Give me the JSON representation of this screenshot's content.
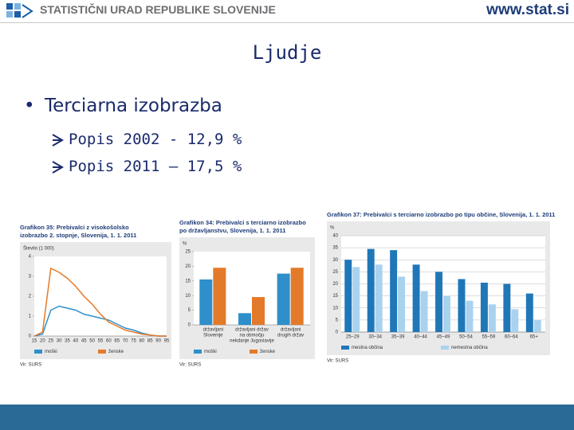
{
  "header": {
    "org": "STATISTIČNI URAD REPUBLIKE SLOVENIJE",
    "url": "www.stat.si"
  },
  "slide": {
    "title": "Ljudje",
    "bullet": "Terciarna izobrazba",
    "sub_bullets": [
      "Popis 2002 - 12,9 %",
      "Popis 2011 – 17,5 %"
    ]
  },
  "chart_data": [
    {
      "type": "line",
      "title": [
        "Grafikon 35: Prebivalci z visokošolsko",
        "izobrazbo 2. stopnje, Slovenija, 1. 1. 2011"
      ],
      "y_label": "Število (1 000)",
      "x": [
        15,
        20,
        25,
        30,
        35,
        40,
        45,
        50,
        55,
        60,
        65,
        70,
        75,
        80,
        85,
        90,
        95
      ],
      "xlim": [
        15,
        95
      ],
      "xticks": [
        15,
        20,
        25,
        30,
        35,
        40,
        45,
        50,
        55,
        60,
        65,
        70,
        75,
        80,
        85,
        90,
        95
      ],
      "ylim": [
        0,
        4
      ],
      "yticks": [
        0,
        1,
        2,
        3,
        4
      ],
      "grid": false,
      "series": [
        {
          "name": "moški",
          "color": "#2e8fcb",
          "values": [
            0,
            0.1,
            1.3,
            1.5,
            1.4,
            1.3,
            1.1,
            1.0,
            0.9,
            0.8,
            0.6,
            0.4,
            0.3,
            0.15,
            0.05,
            0,
            0
          ]
        },
        {
          "name": "ženske",
          "color": "#e37a2a",
          "values": [
            0,
            0.2,
            3.4,
            3.2,
            2.9,
            2.5,
            2.0,
            1.6,
            1.1,
            0.7,
            0.5,
            0.3,
            0.2,
            0.1,
            0.05,
            0,
            0
          ]
        }
      ],
      "source": "Vir: SURS"
    },
    {
      "type": "bar",
      "title": [
        "Grafikon 34: Prebivalci s terciarno izobrazbo",
        "po državljanstvu, Slovenija, 1. 1. 2011"
      ],
      "y_label": "%",
      "categories": [
        [
          "državljani",
          "Slovenije"
        ],
        [
          "državljani držav",
          "na območju",
          "nekdanje Jugoslavije"
        ],
        [
          "državljani",
          "drugih držav"
        ]
      ],
      "ylim": [
        0,
        25
      ],
      "yticks": [
        0,
        5,
        10,
        15,
        20,
        25
      ],
      "grid": false,
      "series": [
        {
          "name": "moški",
          "color": "#2e8fcb",
          "values": [
            15.5,
            4,
            17.5
          ]
        },
        {
          "name": "ženske",
          "color": "#e37a2a",
          "values": [
            19.5,
            9.5,
            19.5
          ]
        }
      ],
      "source": "Vir: SURS"
    },
    {
      "type": "bar",
      "title": [
        "Grafikon 37: Prebivalci s terciarno izobrazbo po tipu občine, Slovenija, 1. 1. 2011"
      ],
      "y_label": "%",
      "categories": [
        "25–29",
        "30–34",
        "35–39",
        "40–44",
        "45–49",
        "50–54",
        "55–59",
        "60–64",
        "65+"
      ],
      "ylim": [
        0,
        40
      ],
      "yticks": [
        0,
        5,
        10,
        15,
        20,
        25,
        30,
        35,
        40
      ],
      "grid": true,
      "series": [
        {
          "name": "mestna občina",
          "color": "#1f77b8",
          "values": [
            30,
            34.5,
            34,
            28,
            25,
            22,
            20.5,
            20,
            16
          ]
        },
        {
          "name": "nemestna občina",
          "color": "#a9d2ef",
          "values": [
            27,
            28,
            23,
            17,
            15,
            13,
            11.5,
            9.5,
            5
          ]
        }
      ],
      "source": "Vir: SURS"
    }
  ]
}
